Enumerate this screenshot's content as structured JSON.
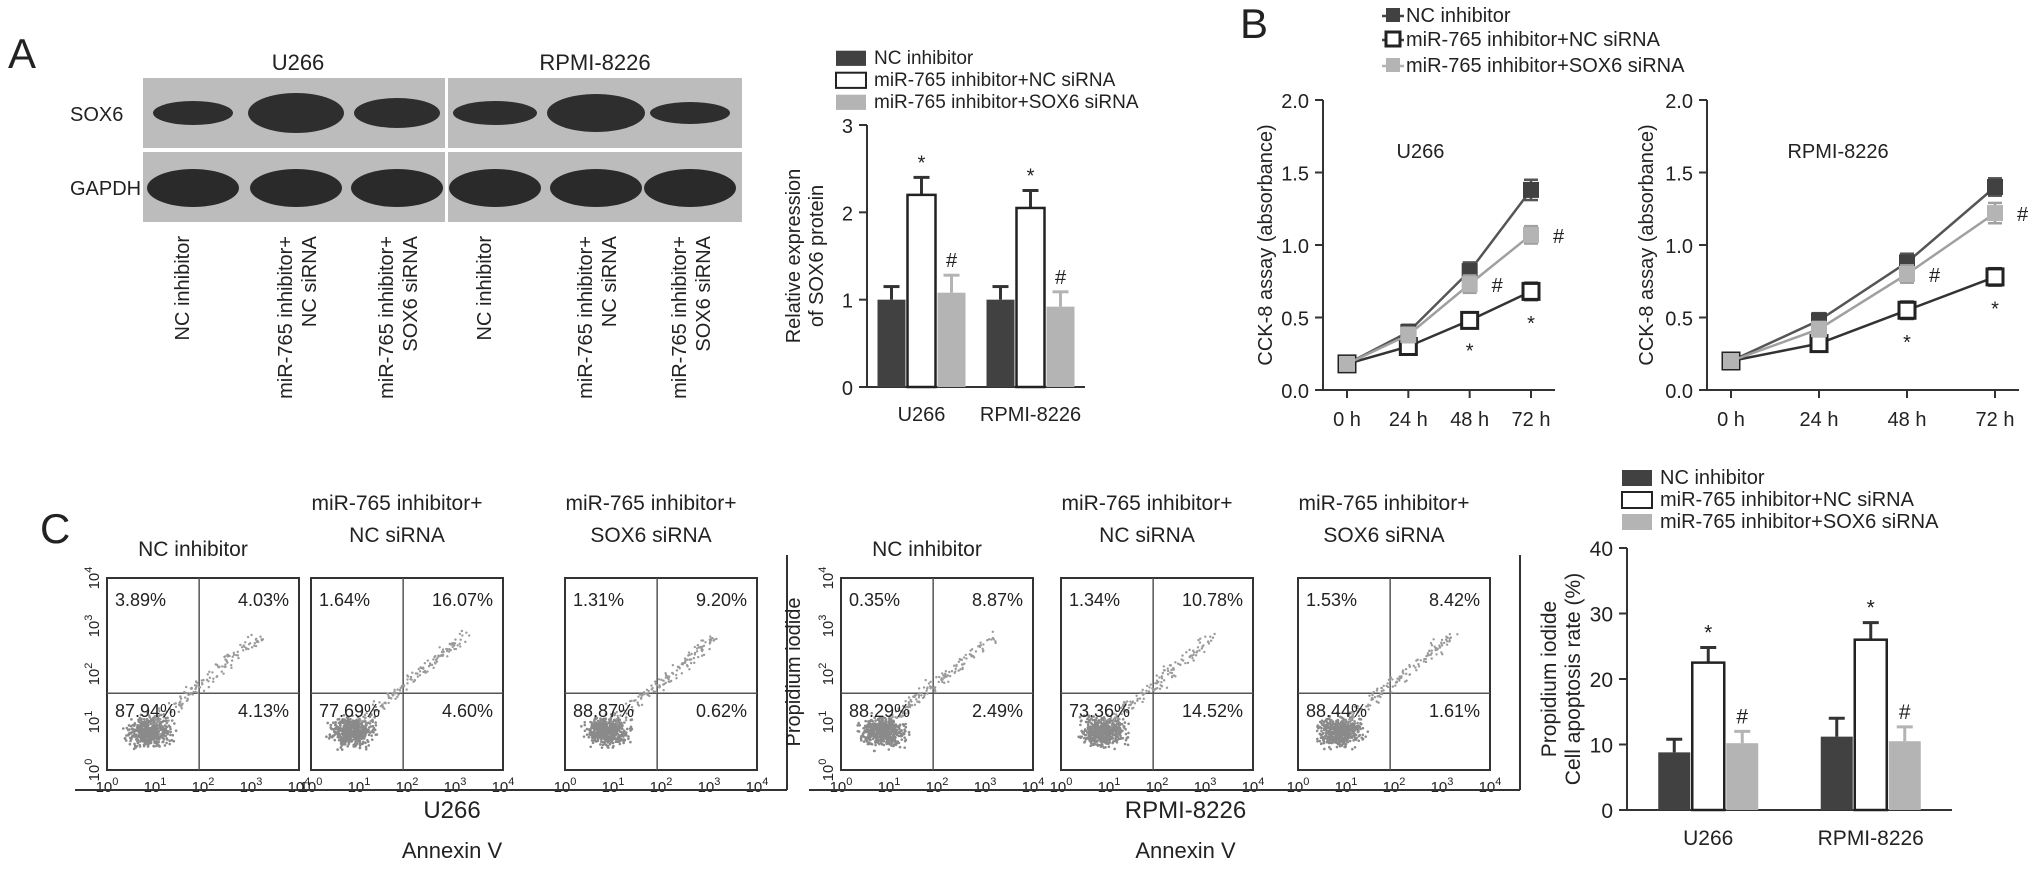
{
  "panels": {
    "A": {
      "letter": "A",
      "blot": {
        "groups": [
          "U266",
          "RPMI-8226"
        ],
        "rows": [
          "SOX6",
          "GAPDH"
        ],
        "lanes": [
          "NC inhibitor",
          "miR-765 inhibitor+\nNC siRNA",
          "miR-765 inhibitor+\nSOX6 siRNA",
          "NC inhibitor",
          "miR-765 inhibitor+\nNC siRNA",
          "miR-765 inhibitor+\nSOX6 siRNA"
        ]
      }
    },
    "B": {
      "letter": "B"
    },
    "C": {
      "letter": "C",
      "flow": {
        "groups": [
          {
            "name": "U266",
            "plots": [
              {
                "title": "NC inhibitor",
                "quadrants": [
                  "3.89%",
                  "4.03%",
                  "87.94%",
                  "4.13%"
                ]
              },
              {
                "title": "miR-765 inhibitor+\nNC siRNA",
                "quadrants": [
                  "1.64%",
                  "16.07%",
                  "77.69%",
                  "4.60%"
                ]
              },
              {
                "title": "miR-765 inhibitor+\nSOX6 siRNA",
                "quadrants": [
                  "1.31%",
                  "9.20%",
                  "88.87%",
                  "0.62%"
                ]
              }
            ]
          },
          {
            "name": "RPMI-8226",
            "plots": [
              {
                "title": "NC inhibitor",
                "quadrants": [
                  "0.35%",
                  "8.87%",
                  "88.29%",
                  "2.49%"
                ]
              },
              {
                "title": "miR-765 inhibitor+\nNC siRNA",
                "quadrants": [
                  "1.34%",
                  "10.78%",
                  "73.36%",
                  "14.52%"
                ]
              },
              {
                "title": "miR-765 inhibitor+\nSOX6 siRNA",
                "quadrants": [
                  "1.53%",
                  "8.42%",
                  "88.44%",
                  "1.61%"
                ]
              }
            ]
          }
        ],
        "xlabel": "Annexin V",
        "ylabel": "Propidium iodide",
        "ticks": [
          "10^0",
          "10^1",
          "10^2",
          "10^3",
          "10^4"
        ]
      }
    }
  },
  "colors": {
    "dark": "#414141",
    "light": "#b4b4b4",
    "white": "#ffffff",
    "line_dark": "#555555",
    "line_mid": "#333333",
    "line_light": "#a0a0a0"
  },
  "chart_data": [
    {
      "id": "A-bar",
      "type": "bar",
      "categories": [
        "U266",
        "RPMI-8226"
      ],
      "series": [
        {
          "name": "NC inhibitor",
          "values": [
            1.0,
            1.0
          ],
          "errors": [
            0.15,
            0.15
          ],
          "marks": [
            "",
            ""
          ]
        },
        {
          "name": "miR-765 inhibitor+NC siRNA",
          "values": [
            2.2,
            2.05
          ],
          "errors": [
            0.2,
            0.2
          ],
          "marks": [
            "*",
            "*"
          ]
        },
        {
          "name": "miR-765 inhibitor+SOX6 siRNA",
          "values": [
            1.08,
            0.92
          ],
          "errors": [
            0.2,
            0.17
          ],
          "marks": [
            "#",
            "#"
          ]
        }
      ],
      "ylabel": "Relative expression\nof SOX6 protein",
      "ylim": [
        0,
        3
      ],
      "yticks": [
        0,
        1,
        2,
        3
      ]
    },
    {
      "id": "B-U266",
      "type": "line",
      "title": "U266",
      "x": [
        "0 h",
        "24 h",
        "48 h",
        "72 h"
      ],
      "series": [
        {
          "name": "NC inhibitor",
          "values": [
            0.18,
            0.4,
            0.82,
            1.38
          ],
          "errors": [
            0.04,
            0.05,
            0.06,
            0.07
          ],
          "marks": [
            "",
            "",
            "",
            ""
          ]
        },
        {
          "name": "miR-765 inhibitor+NC siRNA",
          "values": [
            0.18,
            0.3,
            0.48,
            0.68
          ],
          "errors": [
            0.04,
            0.04,
            0.05,
            0.06
          ],
          "marks": [
            "",
            "",
            "*",
            "*"
          ]
        },
        {
          "name": "miR-765 inhibitor+SOX6 siRNA",
          "values": [
            0.18,
            0.38,
            0.73,
            1.07
          ],
          "errors": [
            0.04,
            0.05,
            0.06,
            0.06
          ],
          "marks": [
            "",
            "",
            "#",
            "#"
          ]
        }
      ],
      "ylabel": "CCK-8 assay (absorbance)",
      "ylim": [
        0,
        2.0
      ],
      "yticks": [
        0,
        0.5,
        1.0,
        1.5,
        2.0
      ],
      "ytick_labels": [
        "0.0",
        "0.5",
        "1.0",
        "1.5",
        "2.0"
      ]
    },
    {
      "id": "B-RPMI",
      "type": "line",
      "title": "RPMI-8226",
      "x": [
        "0 h",
        "24 h",
        "48 h",
        "72 h"
      ],
      "series": [
        {
          "name": "NC inhibitor",
          "values": [
            0.2,
            0.48,
            0.88,
            1.4
          ],
          "errors": [
            0.04,
            0.05,
            0.06,
            0.06
          ],
          "marks": [
            "",
            "",
            "",
            ""
          ]
        },
        {
          "name": "miR-765 inhibitor+NC siRNA",
          "values": [
            0.2,
            0.32,
            0.55,
            0.78
          ],
          "errors": [
            0.04,
            0.04,
            0.06,
            0.06
          ],
          "marks": [
            "",
            "",
            "*",
            "*"
          ]
        },
        {
          "name": "miR-765 inhibitor+SOX6 siRNA",
          "values": [
            0.2,
            0.42,
            0.8,
            1.22
          ],
          "errors": [
            0.04,
            0.05,
            0.06,
            0.07
          ],
          "marks": [
            "",
            "",
            "#",
            "#"
          ]
        }
      ],
      "ylabel": "CCK-8 assay (absorbance)",
      "ylim": [
        0,
        2.0
      ],
      "yticks": [
        0,
        0.5,
        1.0,
        1.5,
        2.0
      ],
      "ytick_labels": [
        "0.0",
        "0.5",
        "1.0",
        "1.5",
        "2.0"
      ]
    },
    {
      "id": "C-bar",
      "type": "bar",
      "categories": [
        "U266",
        "RPMI-8226"
      ],
      "series": [
        {
          "name": "NC inhibitor",
          "values": [
            8.8,
            11.2
          ],
          "errors": [
            2.0,
            2.8
          ],
          "marks": [
            "",
            ""
          ]
        },
        {
          "name": "miR-765 inhibitor+NC siRNA",
          "values": [
            22.5,
            26.0
          ],
          "errors": [
            2.3,
            2.6
          ],
          "marks": [
            "*",
            "*"
          ]
        },
        {
          "name": "miR-765 inhibitor+SOX6 siRNA",
          "values": [
            10.2,
            10.5
          ],
          "errors": [
            1.8,
            2.2
          ],
          "marks": [
            "#",
            "#"
          ]
        }
      ],
      "ylabel": "Propidium iodide\nCell apoptosis rate (%)",
      "ylim": [
        0,
        40
      ],
      "yticks": [
        0,
        10,
        20,
        30,
        40
      ]
    }
  ]
}
